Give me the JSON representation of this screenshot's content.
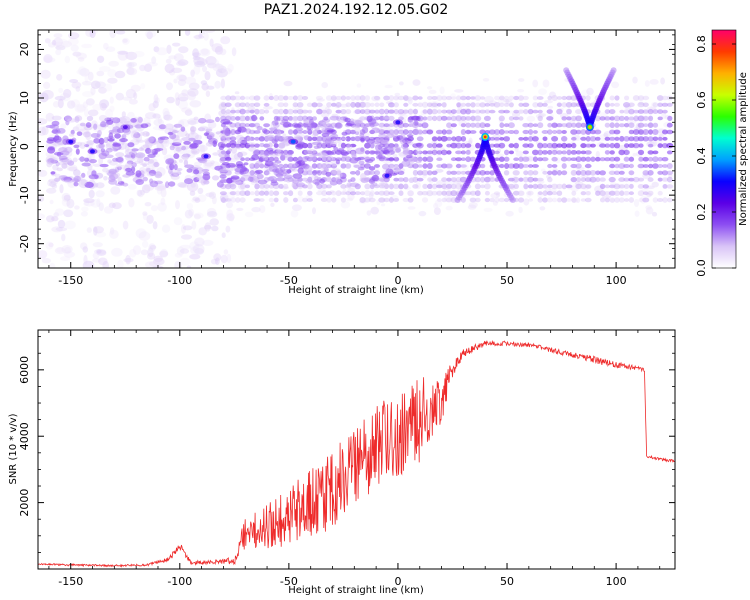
{
  "figure": {
    "title": "PAZ1.2024.192.12.05.G02"
  },
  "chart_data": [
    {
      "type": "heatmap",
      "xlabel": "Height of straight line (km)",
      "ylabel": "Frequency (Hz)",
      "xlim": [
        -165,
        127
      ],
      "ylim": [
        -25,
        24
      ],
      "x_ticks": [
        -150,
        -100,
        -50,
        0,
        50,
        100
      ],
      "y_ticks": [
        -20,
        -10,
        0,
        10,
        20
      ],
      "colorbar": {
        "label": "Normalized spectral amplitude",
        "range": [
          0.0,
          0.85
        ],
        "ticks": [
          0.0,
          0.2,
          0.4,
          0.6,
          0.8
        ],
        "colormap": [
          "#ffffff",
          "#d9c4f7",
          "#8d4ff2",
          "#5b00e6",
          "#0a00ff",
          "#00a0ff",
          "#00ffd0",
          "#2cff00",
          "#c8ff00",
          "#ffb000",
          "#ff3a00",
          "#ff006a"
        ]
      },
      "features": [
        {
          "x": [
            -80,
            125
          ],
          "center_hz": 0,
          "halfwidth_hz": 11,
          "kind": "striped band"
        },
        {
          "x": 40,
          "peak_hz": 2,
          "amplitude": 0.8,
          "kind": "inverted-V arc"
        },
        {
          "x": 88,
          "peak_hz": 4,
          "amplitude": 0.7,
          "kind": "V arc"
        },
        {
          "x": 0,
          "hz": 5,
          "amplitude": 0.3
        },
        {
          "x": -5,
          "hz": -6,
          "amplitude": 0.3
        },
        {
          "x": -48,
          "hz": 1,
          "amplitude": 0.35
        },
        {
          "x": -150,
          "hz": 1,
          "amplitude": 0.3
        },
        {
          "x": -140,
          "hz": -1,
          "amplitude": 0.3
        },
        {
          "x": -125,
          "hz": 4,
          "amplitude": 0.25
        },
        {
          "x": -88,
          "hz": -2,
          "amplitude": 0.3
        }
      ]
    },
    {
      "type": "line",
      "xlabel": "Height of straight line (km)",
      "ylabel": "SNR (10 * v/v)",
      "xlim": [
        -165,
        127
      ],
      "ylim": [
        0,
        7200
      ],
      "x_ticks": [
        -150,
        -100,
        -50,
        0,
        50,
        100
      ],
      "y_ticks": [
        2000,
        4000,
        6000
      ],
      "series": [
        {
          "color": "#ee2a2a",
          "x": [
            -165,
            -150,
            -130,
            -115,
            -105,
            -100,
            -95,
            -85,
            -75,
            -70,
            -60,
            -50,
            -40,
            -30,
            -20,
            -10,
            0,
            10,
            20,
            25,
            30,
            40,
            50,
            60,
            70,
            80,
            90,
            100,
            110,
            113,
            114,
            120,
            127
          ],
          "y": [
            150,
            120,
            100,
            120,
            300,
            700,
            200,
            200,
            250,
            1100,
            1300,
            1500,
            2000,
            2400,
            3000,
            3600,
            4100,
            4500,
            5100,
            6000,
            6500,
            6800,
            6800,
            6750,
            6600,
            6450,
            6300,
            6150,
            6050,
            6000,
            3400,
            3300,
            3250
          ],
          "noise_amplitude": [
            20,
            30,
            30,
            30,
            60,
            120,
            60,
            60,
            120,
            500,
            700,
            900,
            1100,
            1200,
            1200,
            1300,
            1400,
            1300,
            700,
            250,
            120,
            80,
            70,
            70,
            70,
            80,
            110,
            90,
            60,
            50,
            40,
            40,
            40
          ]
        }
      ]
    }
  ]
}
